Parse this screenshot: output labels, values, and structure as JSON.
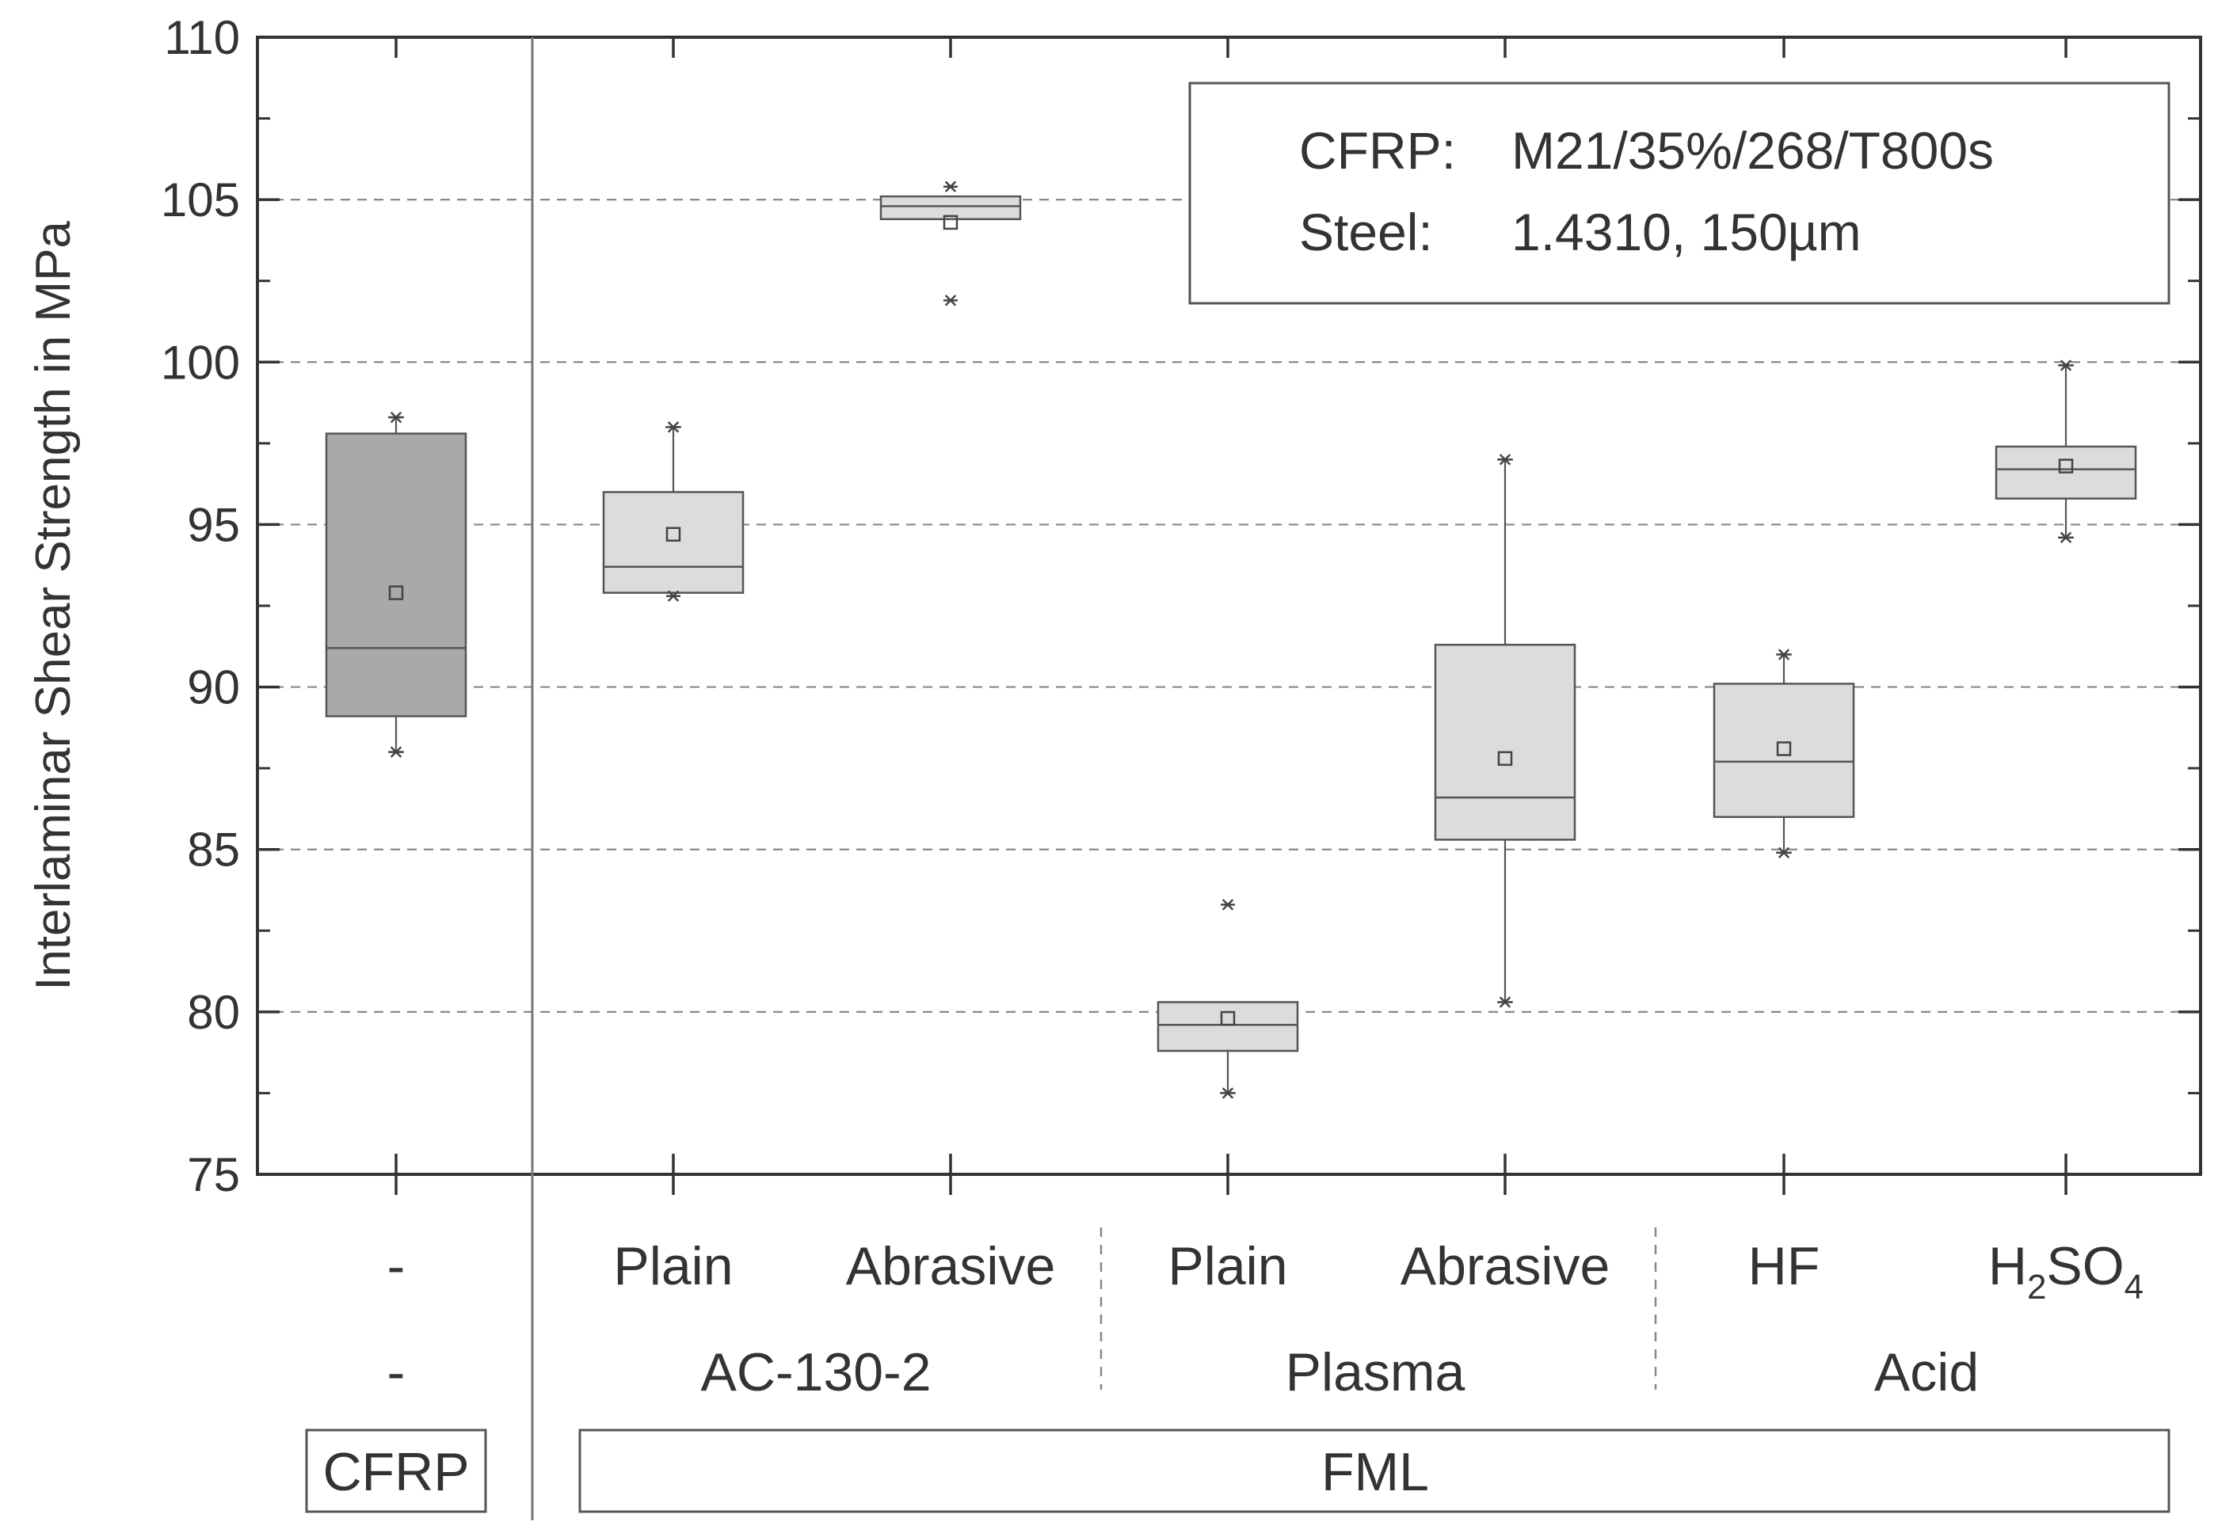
{
  "chart_data": {
    "type": "box",
    "ylabel": "Interlaminar Shear Strength in MPa",
    "ylim": [
      75,
      110
    ],
    "y_ticks": [
      75,
      80,
      85,
      90,
      95,
      100,
      105,
      110
    ],
    "grid": "horizontal dashed at 80, 85, 90, 95, 100, 105",
    "legend": {
      "placement": "top-right",
      "rows": [
        {
          "key": "CFRP:",
          "value": "M21/35%/268/T800s"
        },
        {
          "key": "Steel:",
          "value": "1.4310, 150µm"
        }
      ]
    },
    "boxes": [
      {
        "treatment": "-",
        "method": "-",
        "material": "CFRP",
        "min": 88.0,
        "q1": 89.1,
        "median": 91.2,
        "q3": 97.8,
        "max": 98.3,
        "mean": 92.9,
        "whisker_low": 88.0,
        "whisker_high": 98.3,
        "color": "#a9a9a9"
      },
      {
        "treatment": "Plain",
        "method": "AC-130-2",
        "material": "FML",
        "min": 92.8,
        "q1": 92.9,
        "median": 93.7,
        "q3": 96.0,
        "max": 98.0,
        "mean": 94.7,
        "whisker_low": 92.9,
        "whisker_high": 98.0,
        "color": "#dcdcdc"
      },
      {
        "treatment": "Abrasive",
        "method": "AC-130-2",
        "material": "FML",
        "min": 101.9,
        "q1": 104.4,
        "median": 104.8,
        "q3": 105.1,
        "max": 105.4,
        "mean": 104.3,
        "whisker_low": 104.4,
        "whisker_high": 105.1,
        "color": "#dcdcdc"
      },
      {
        "treatment": "Plain",
        "method": "Plasma",
        "material": "FML",
        "min": 77.5,
        "q1": 78.8,
        "median": 79.6,
        "q3": 80.3,
        "max": 83.3,
        "mean": 79.8,
        "whisker_low": 77.5,
        "whisker_high": 80.3,
        "color": "#dcdcdc"
      },
      {
        "treatment": "Abrasive",
        "method": "Plasma",
        "material": "FML",
        "min": 80.3,
        "q1": 85.3,
        "median": 86.6,
        "q3": 91.3,
        "max": 97.0,
        "mean": 87.8,
        "whisker_low": 80.3,
        "whisker_high": 97.0,
        "color": "#dcdcdc"
      },
      {
        "treatment": "HF",
        "method": "Acid",
        "material": "FML",
        "min": 84.9,
        "q1": 86.0,
        "median": 87.7,
        "q3": 90.1,
        "max": 91.0,
        "mean": 88.1,
        "whisker_low": 84.9,
        "whisker_high": 91.0,
        "color": "#dcdcdc"
      },
      {
        "treatment": "H2SO4",
        "method": "Acid",
        "material": "FML",
        "min": 94.6,
        "q1": 95.8,
        "median": 96.7,
        "q3": 97.4,
        "max": 99.9,
        "mean": 96.8,
        "whisker_low": 94.6,
        "whisker_high": 99.9,
        "color": "#dcdcdc"
      }
    ],
    "treatment_labels": [
      "-",
      "Plain",
      "Abrasive",
      "Plain",
      "Abrasive",
      "HF",
      "H2SO4"
    ],
    "method_labels": [
      "-",
      "AC-130-2",
      "Plasma",
      "Acid"
    ],
    "material_labels": [
      "CFRP",
      "FML"
    ]
  },
  "labels": {
    "h2so4_prefix": "H",
    "h2so4_sub1": "2",
    "h2so4_mid": "SO",
    "h2so4_sub2": "4"
  },
  "colors": {
    "axis": "#333333",
    "cfrp_box": "#a9a9a9",
    "fml_box": "#dcdcdc",
    "grid": "#888888"
  }
}
